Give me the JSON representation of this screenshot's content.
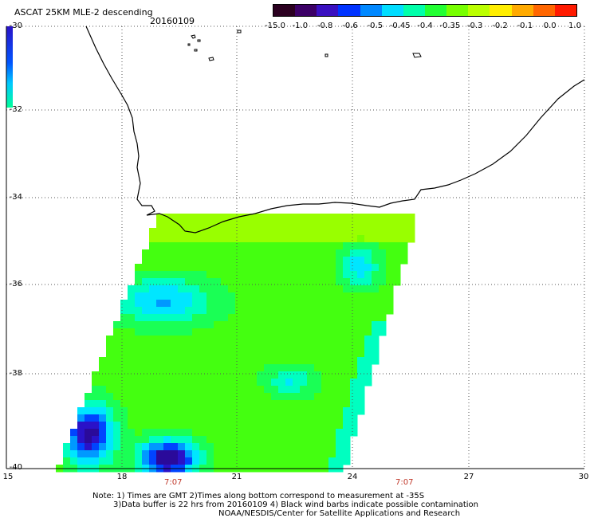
{
  "header": {
    "title": "ASCAT 25KM MLE-2 descending",
    "date": "20160109"
  },
  "colorbar": {
    "labels": [
      "-15.0",
      "-1.0",
      "-0.8",
      "-0.6",
      "-0.5",
      "-0.45",
      "-0.4",
      "-0.35",
      "-0.3",
      "-0.2",
      "-0.1",
      "0.0",
      "1.0"
    ],
    "colors": [
      "#2b0020",
      "#3c0066",
      "#3a10c0",
      "#0033ff",
      "#0088ff",
      "#00ddff",
      "#00ffaa",
      "#22ff33",
      "#77ff00",
      "#bbff00",
      "#ffee00",
      "#ffaa00",
      "#ff6600",
      "#ff1a00"
    ]
  },
  "map": {
    "lat_labels": [
      "-30",
      "-32",
      "-34",
      "-36",
      "-38",
      "-40"
    ],
    "lon_labels": [
      "15",
      "18",
      "21",
      "24",
      "27",
      "30"
    ],
    "time_labels": [
      "7:07",
      "7:07"
    ],
    "lat_range": [
      -40,
      -30
    ],
    "lon_range": [
      15,
      30
    ]
  },
  "notes": [
    "Note: 1) Times are GMT 2)Times along bottom correspond to measurement at -35S",
    "3)Data buffer is 22 hrs from 20160109 4) Black wind barbs indicate possible contamination",
    "NOAA/NESDIS/Center for Satellite Applications and Research"
  ]
}
